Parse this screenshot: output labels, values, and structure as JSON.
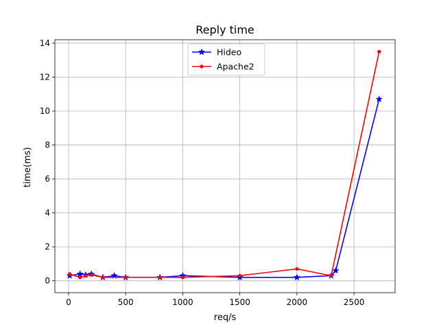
{
  "chart_data": {
    "type": "line",
    "title": "Reply time",
    "xlabel": "req/s",
    "ylabel": "time(ms)",
    "xlim": [
      -120,
      2860
    ],
    "ylim": [
      -0.7,
      14.2
    ],
    "xticks": [
      0,
      500,
      1000,
      1500,
      2000,
      2500
    ],
    "yticks": [
      0,
      2,
      4,
      6,
      8,
      10,
      12,
      14
    ],
    "grid": true,
    "legend": "upper center",
    "series": [
      {
        "name": "Hideo",
        "color": "#0000ff",
        "marker": "star",
        "x": [
          10,
          100,
          150,
          200,
          300,
          400,
          500,
          800,
          1000,
          1500,
          2000,
          2300,
          2340,
          2720
        ],
        "y": [
          0.3,
          0.4,
          0.35,
          0.4,
          0.2,
          0.3,
          0.2,
          0.2,
          0.3,
          0.2,
          0.2,
          0.3,
          0.6,
          10.7
        ]
      },
      {
        "name": "Apache2",
        "color": "#ff0000",
        "marker": "dot",
        "x": [
          10,
          100,
          150,
          200,
          300,
          500,
          800,
          1000,
          1500,
          2000,
          2300,
          2720
        ],
        "y": [
          0.4,
          0.2,
          0.3,
          0.35,
          0.2,
          0.2,
          0.2,
          0.2,
          0.3,
          0.7,
          0.3,
          13.5
        ]
      }
    ]
  }
}
